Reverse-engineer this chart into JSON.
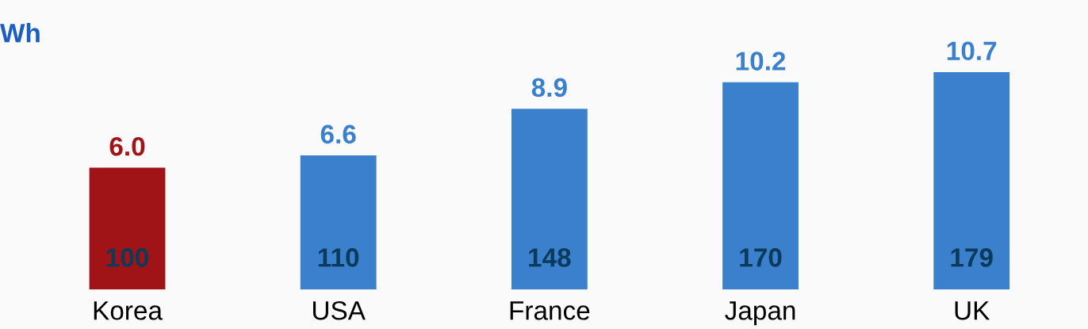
{
  "chart_data": {
    "type": "bar",
    "title": "Wh",
    "categories": [
      "Korea",
      "USA",
      "France",
      "Japan",
      "UK"
    ],
    "values": [
      6.0,
      6.6,
      8.9,
      10.2,
      10.7
    ],
    "value_labels": [
      "6.0",
      "6.6",
      "8.9",
      "10.2",
      "10.7"
    ],
    "colors": [
      "#a01418",
      "#3a80cc",
      "#3a80cc",
      "#3a80cc",
      "#3a80cc"
    ],
    "annotations": [
      "100",
      "110",
      "148",
      "170",
      "179"
    ],
    "grid": false,
    "legend": false
  }
}
